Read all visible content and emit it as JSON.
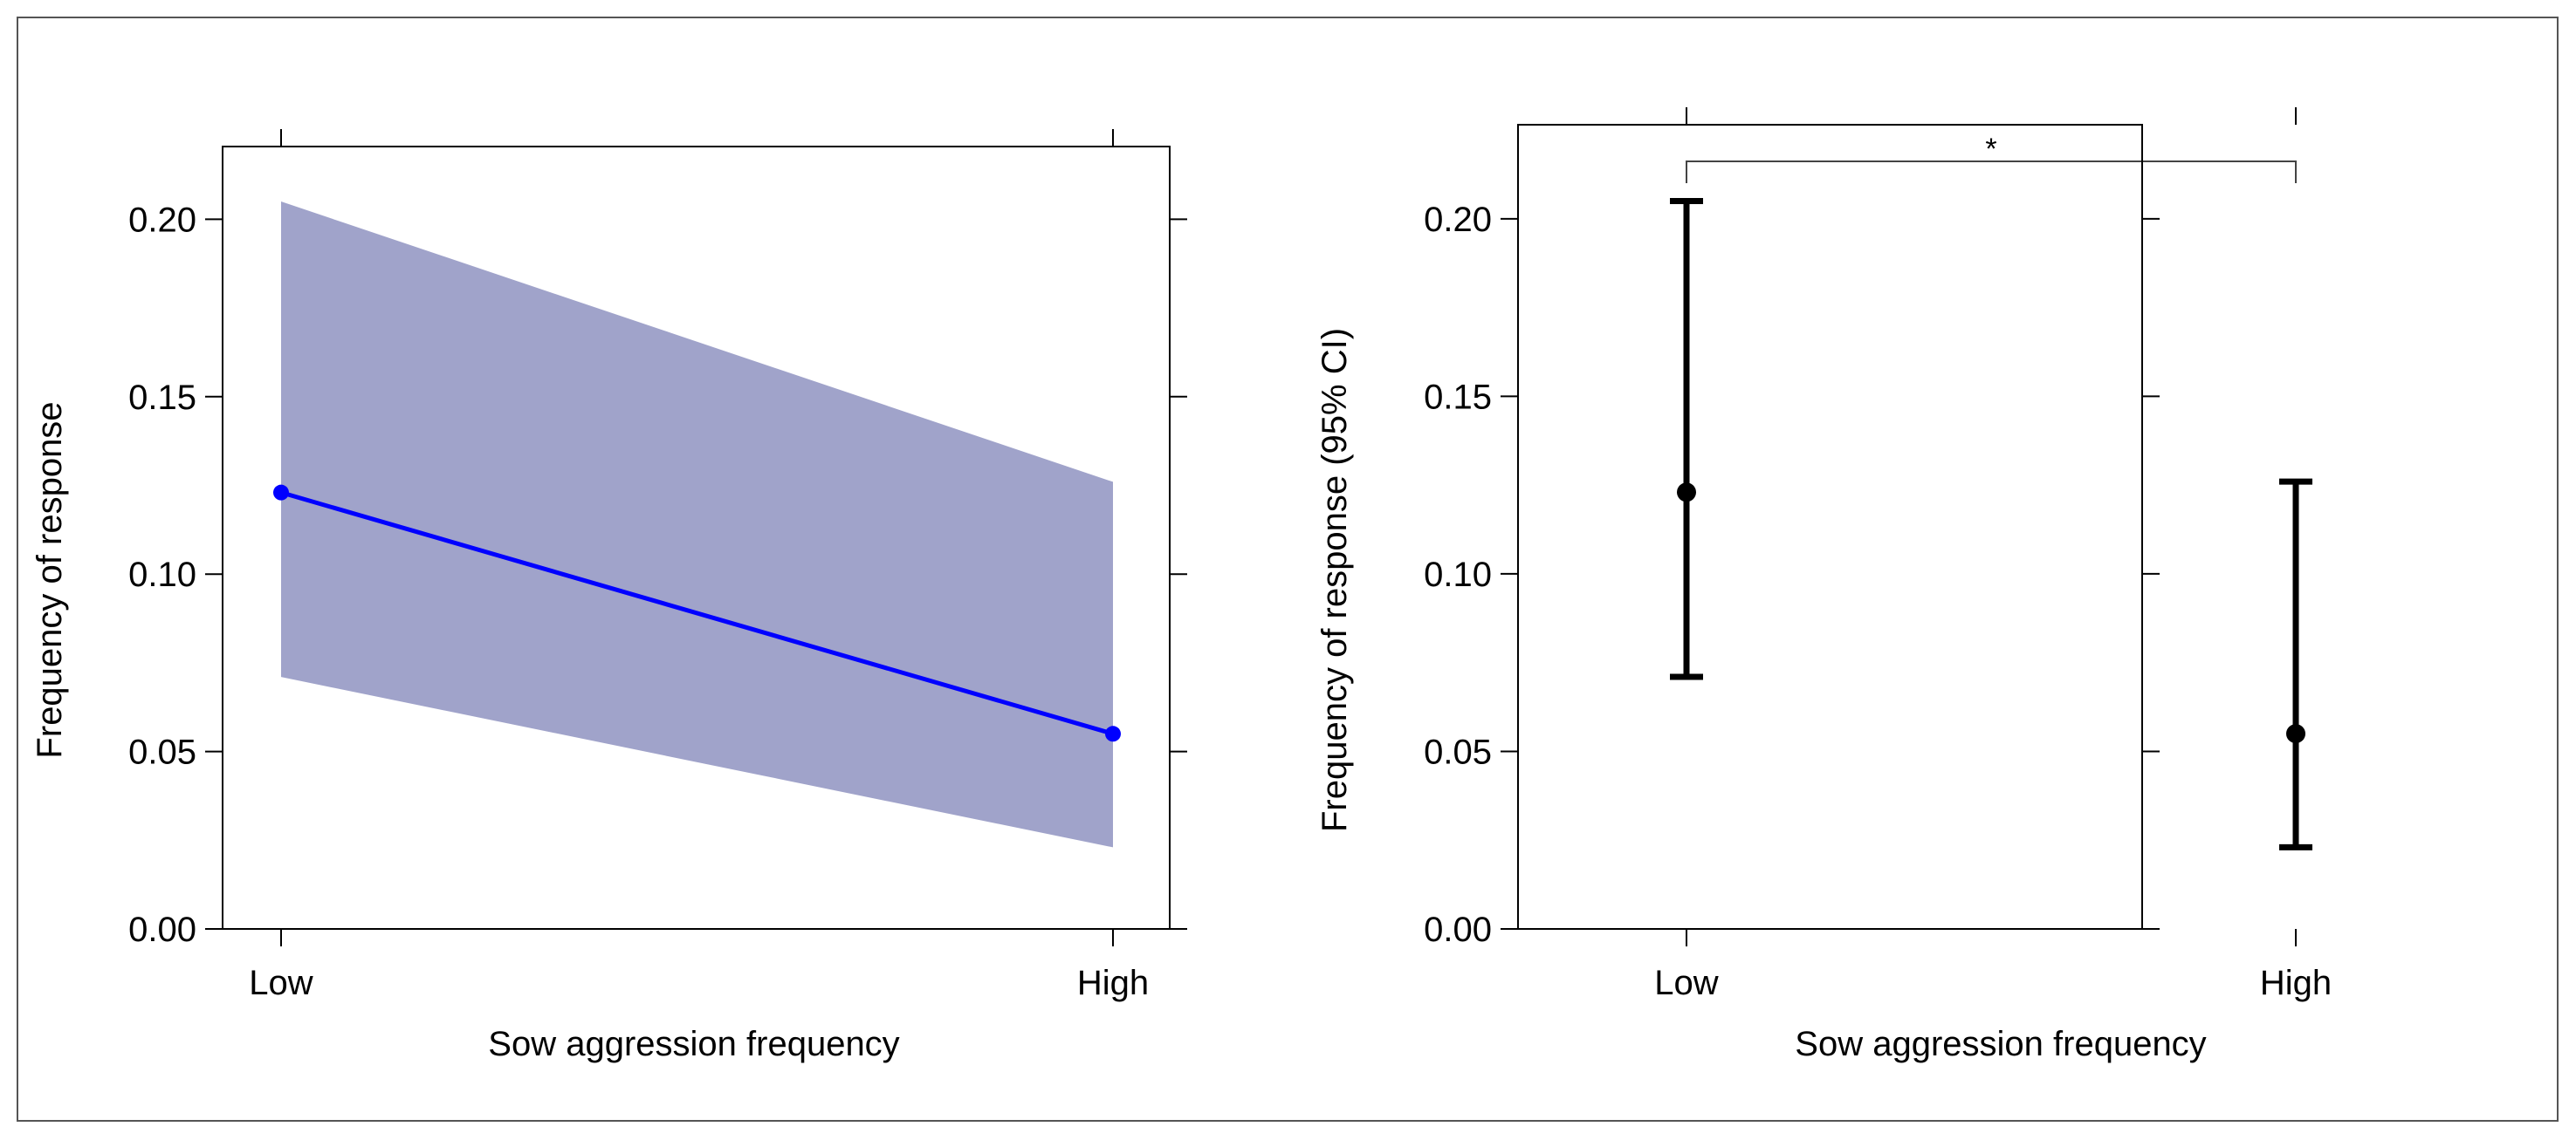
{
  "colors": {
    "ci_band": "#a0a3ca",
    "line": "#0000ff",
    "errorbar": "#000000",
    "axis": "#000000",
    "frame": "#555555"
  },
  "chart_data": [
    {
      "id": "left",
      "type": "line",
      "title": "",
      "xlabel": "Sow aggression frequency",
      "ylabel": "Frequency of  response",
      "categories": [
        "Low",
        "High"
      ],
      "series": [
        {
          "name": "Frequency of response",
          "values": [
            0.123,
            0.055
          ],
          "lower": [
            0.071,
            0.023
          ],
          "upper": [
            0.205,
            0.126
          ]
        }
      ],
      "ylim": [
        0,
        0.2205
      ],
      "yticks": [
        0,
        0.05,
        0.1,
        0.15,
        0.2
      ],
      "ytick_labels": [
        "0.00",
        "0.05",
        "0.10",
        "0.15",
        "0.20"
      ],
      "grid": false
    },
    {
      "id": "right",
      "type": "errorbar",
      "title": "",
      "xlabel": "Sow aggression frequency",
      "ylabel": "Frequency of  response (95% CI)",
      "categories": [
        "Low",
        "High"
      ],
      "series": [
        {
          "name": "Frequency of response",
          "values": [
            0.123,
            0.055
          ],
          "lower": [
            0.071,
            0.023
          ],
          "upper": [
            0.205,
            0.126
          ]
        }
      ],
      "ylim": [
        0,
        0.2265
      ],
      "yticks": [
        0,
        0.05,
        0.1,
        0.15,
        0.2
      ],
      "ytick_labels": [
        "0.00",
        "0.05",
        "0.10",
        "0.15",
        "0.20"
      ],
      "annotation": {
        "text": "*",
        "between": [
          "Low",
          "High"
        ]
      },
      "grid": false
    }
  ]
}
